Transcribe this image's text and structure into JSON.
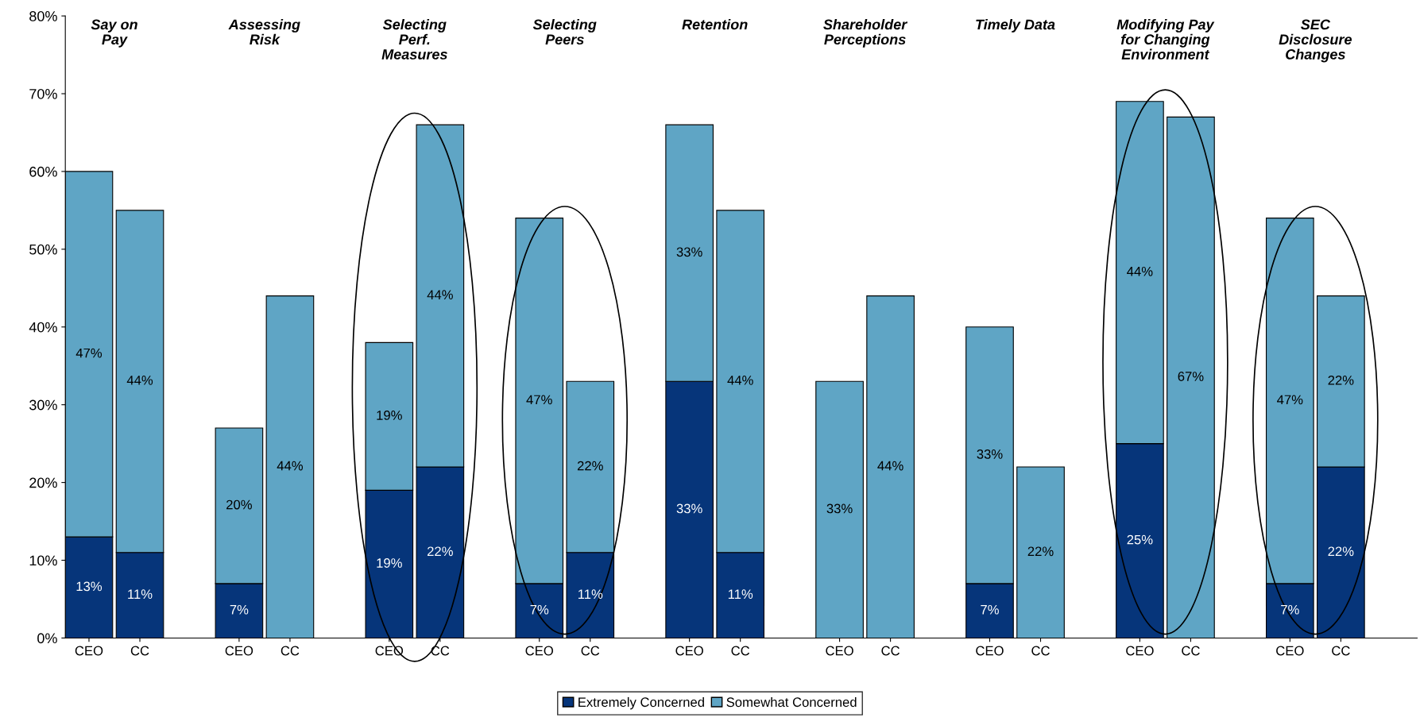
{
  "chart_data": {
    "type": "bar",
    "stacked": true,
    "categories": [
      "CEO",
      "CC",
      "CEO",
      "CC",
      "CEO",
      "CC",
      "CEO",
      "CC",
      "CEO",
      "CC",
      "CEO",
      "CC",
      "CEO",
      "CC",
      "CEO",
      "CC",
      "CEO",
      "CC"
    ],
    "series": [
      {
        "name": "Extremely Concerned",
        "color": "#06357a",
        "values": [
          13,
          11,
          7,
          0,
          19,
          22,
          7,
          11,
          33,
          11,
          0,
          0,
          7,
          0,
          25,
          0,
          7,
          22
        ],
        "value_labels": [
          "13%",
          "11%",
          "7%",
          null,
          "19%",
          "22%",
          "7%",
          "11%",
          "33%",
          "11%",
          null,
          null,
          "7%",
          null,
          "25%",
          null,
          "7%",
          "22%"
        ]
      },
      {
        "name": "Somewhat Concerned",
        "color": "#5fa5c5",
        "values": [
          47,
          44,
          20,
          44,
          19,
          44,
          47,
          22,
          33,
          44,
          33,
          44,
          33,
          22,
          44,
          67,
          47,
          22
        ],
        "value_labels": [
          "47%",
          "44%",
          "20%",
          "44%",
          "19%",
          "44%",
          "47%",
          "22%",
          "33%",
          "44%",
          "33%",
          "44%",
          "33%",
          "22%",
          "44%",
          "67%",
          "47%",
          "22%"
        ]
      }
    ],
    "ylim": [
      0,
      80
    ],
    "yticks": [
      {
        "value": 0,
        "label": "0%"
      },
      {
        "value": 10,
        "label": "10%"
      },
      {
        "value": 20,
        "label": "20%"
      },
      {
        "value": 30,
        "label": "30%"
      },
      {
        "value": 40,
        "label": "40%"
      },
      {
        "value": 50,
        "label": "50%"
      },
      {
        "value": 60,
        "label": "60%"
      },
      {
        "value": 70,
        "label": "70%"
      },
      {
        "value": 80,
        "label": "80%"
      }
    ],
    "annotations": [
      "Say on\nPay",
      "Assessing\nRisk",
      "Selecting\nPerf.\nMeasures",
      "Selecting\nPeers",
      "Retention",
      "Shareholder\nPerceptions",
      "Timely Data",
      "Modifying Pay\nfor Changing\nEnvironment",
      "SEC\nDisclosure\nChanges"
    ],
    "legend": "bottom",
    "grid": false
  }
}
